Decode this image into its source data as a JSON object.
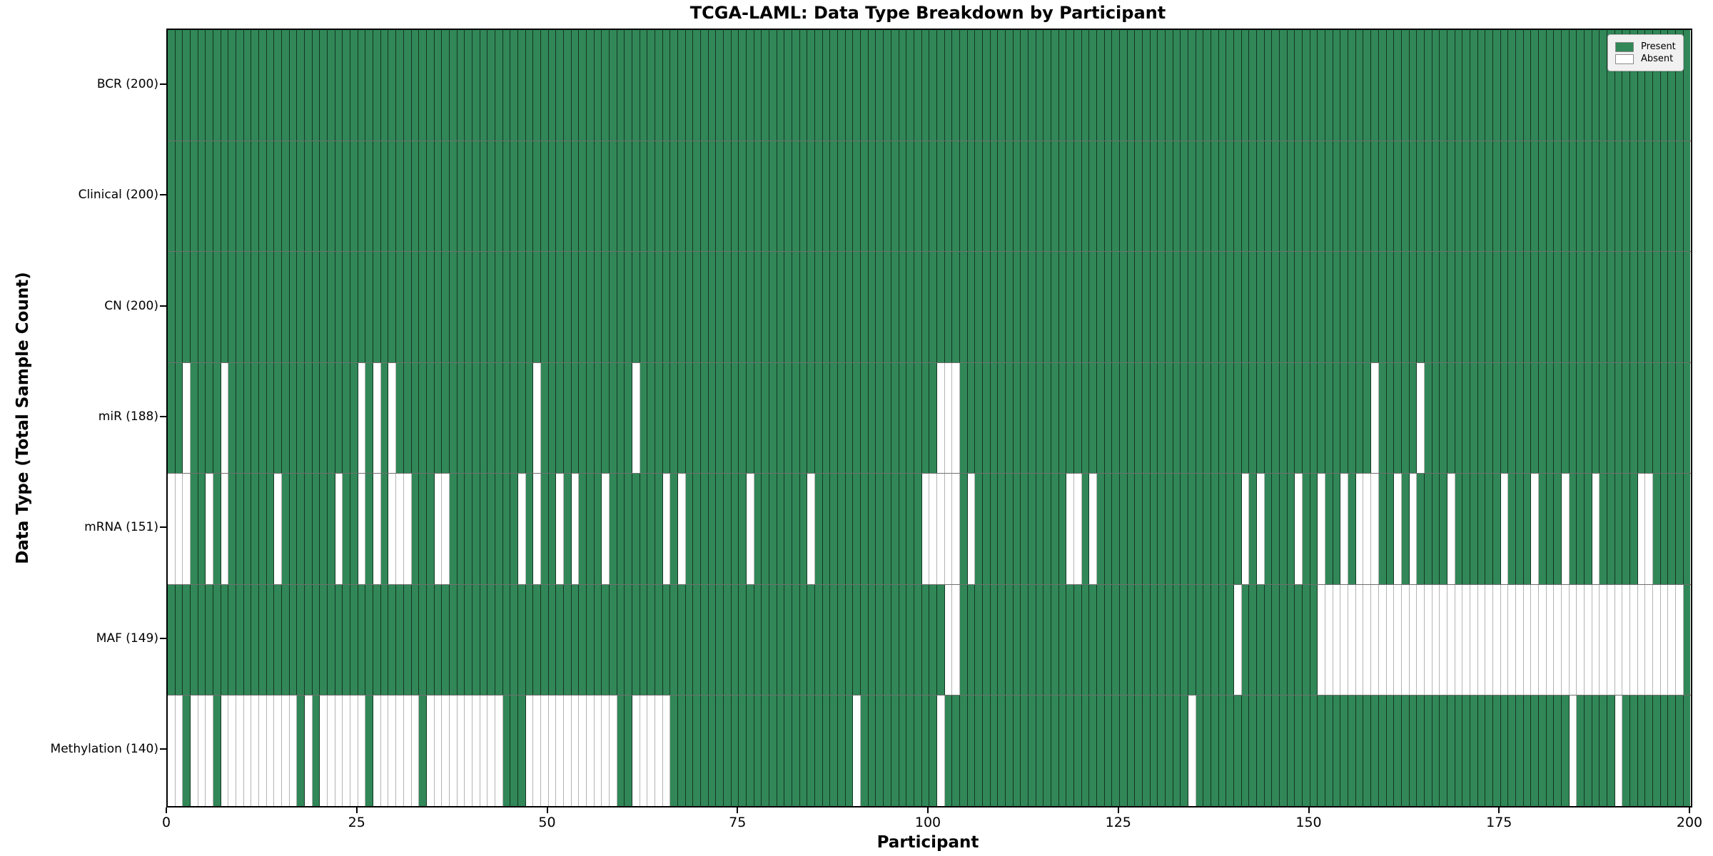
{
  "chart_data": {
    "type": "heatmap",
    "title": "TCGA-LAML: Data Type Breakdown by Participant",
    "xlabel": "Participant",
    "ylabel": "Data Type (Total Sample Count)",
    "n_participants": 200,
    "x_ticks": [
      0,
      25,
      50,
      75,
      100,
      125,
      150,
      175,
      200
    ],
    "xlim": [
      0,
      200
    ],
    "grid": false,
    "legend_position": "upper right",
    "colors": {
      "present": "#318757",
      "absent": "#ffffff"
    },
    "legend": [
      {
        "label": "Present",
        "color": "#318757"
      },
      {
        "label": "Absent",
        "color": "#ffffff"
      }
    ],
    "rows": [
      {
        "label": "BCR (200)",
        "name": "BCR",
        "total": 200,
        "absent": []
      },
      {
        "label": "Clinical (200)",
        "name": "Clinical",
        "total": 200,
        "absent": []
      },
      {
        "label": "CN (200)",
        "name": "CN",
        "total": 200,
        "absent": []
      },
      {
        "label": "miR (188)",
        "name": "miR",
        "total": 188,
        "absent": [
          2,
          7,
          25,
          27,
          29,
          48,
          61,
          101,
          102,
          103,
          158,
          164
        ]
      },
      {
        "label": "mRNA (151)",
        "name": "mRNA",
        "total": 151,
        "absent": [
          0,
          1,
          2,
          5,
          7,
          14,
          22,
          25,
          27,
          29,
          30,
          31,
          35,
          36,
          46,
          48,
          51,
          53,
          57,
          65,
          67,
          76,
          84,
          99,
          100,
          101,
          102,
          103,
          105,
          118,
          119,
          121,
          141,
          143,
          148,
          151,
          154,
          156,
          157,
          158,
          161,
          163,
          168,
          175,
          179,
          183,
          187,
          193,
          194
        ]
      },
      {
        "label": "MAF (149)",
        "name": "MAF",
        "total": 149,
        "absent": [
          102,
          103,
          140,
          151,
          152,
          153,
          154,
          155,
          156,
          157,
          158,
          159,
          160,
          161,
          162,
          163,
          164,
          165,
          166,
          167,
          168,
          169,
          170,
          171,
          172,
          173,
          174,
          175,
          176,
          177,
          178,
          179,
          180,
          181,
          182,
          183,
          184,
          185,
          186,
          187,
          188,
          189,
          190,
          191,
          192,
          193,
          194,
          195,
          196,
          197,
          198
        ]
      },
      {
        "label": "Methylation (140)",
        "name": "Methylation",
        "total": 140,
        "absent": [
          0,
          1,
          3,
          4,
          5,
          7,
          8,
          9,
          10,
          11,
          12,
          13,
          14,
          15,
          16,
          18,
          20,
          21,
          22,
          23,
          24,
          25,
          27,
          28,
          29,
          30,
          31,
          32,
          34,
          35,
          36,
          37,
          38,
          39,
          40,
          41,
          42,
          43,
          47,
          48,
          49,
          50,
          51,
          52,
          53,
          54,
          55,
          56,
          57,
          58,
          61,
          62,
          63,
          64,
          65,
          90,
          101,
          134,
          184,
          190
        ]
      }
    ]
  }
}
